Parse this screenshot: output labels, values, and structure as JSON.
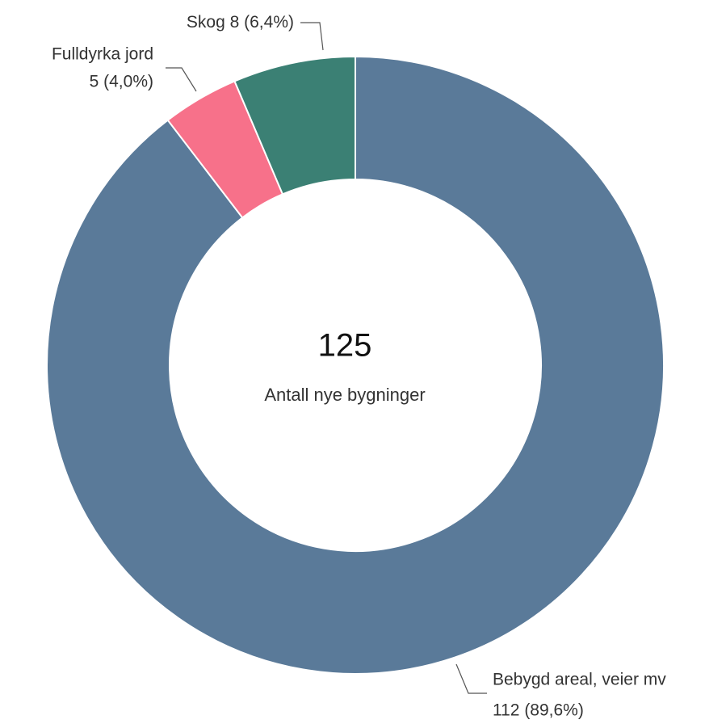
{
  "chart_data": {
    "type": "donut",
    "categories": [
      "Bebygd areal, veier mv",
      "Fulldyrka jord",
      "Skog"
    ],
    "values": [
      112,
      5,
      8
    ],
    "value_labels": [
      "112 (89,6%)",
      "5 (4,0%)",
      "8 (6,4%)"
    ],
    "colors": [
      "#5a7a99",
      "#f7718a",
      "#3b8074"
    ],
    "center_value": 125,
    "center_label": "Antall nye bygninger"
  }
}
